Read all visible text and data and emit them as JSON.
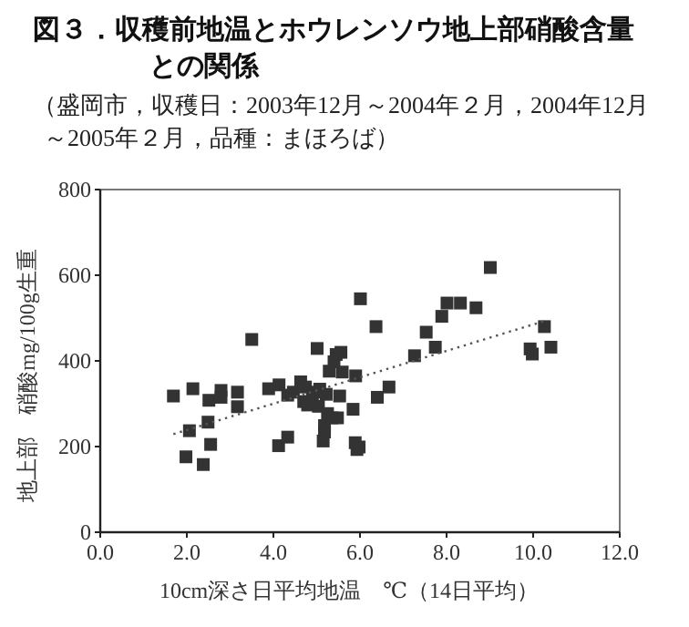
{
  "chart_data": {
    "type": "scatter",
    "title": "図３．収穫前地温とホウレンソウ地上部硝酸含量との関係",
    "subtitle": "（盛岡市，収穫日：2003年12月～2004年２月，2004年12月～2005年２月，品種：まほろば）",
    "xlabel": "10cm深さ日平均地温　℃（14日平均）",
    "ylabel": "地上部　硝酸mg/100g生重",
    "xlim": [
      0,
      12
    ],
    "ylim": [
      0,
      800
    ],
    "xticks": [
      {
        "value": 0,
        "label": "0.0"
      },
      {
        "value": 2,
        "label": "2.0"
      },
      {
        "value": 4,
        "label": "4.0"
      },
      {
        "value": 6,
        "label": "6.0"
      },
      {
        "value": 8,
        "label": "8.0"
      },
      {
        "value": 10,
        "label": "10.0"
      },
      {
        "value": 12,
        "label": "12.0"
      }
    ],
    "yticks": [
      0,
      200,
      400,
      600,
      800
    ],
    "series": [
      {
        "color": "#333333",
        "marker": "square",
        "x": [
          1.69,
          2.14,
          2.06,
          1.98,
          2.38,
          2.51,
          2.49,
          2.55,
          2.79,
          2.79,
          3.17,
          3.17,
          3.5,
          3.89,
          4.13,
          4.12,
          4.33,
          4.33,
          4.46,
          4.63,
          4.74,
          4.7,
          4.79,
          4.9,
          4.96,
          5.01,
          5.04,
          5.07,
          5.15,
          5.18,
          5.18,
          5.22,
          5.25,
          5.29,
          5.35,
          5.4,
          5.45,
          5.48,
          5.56,
          5.59,
          5.53,
          5.84,
          5.9,
          5.89,
          5.93,
          5.98,
          6.01,
          6.37,
          6.4,
          6.67,
          7.26,
          7.53,
          7.74,
          7.89,
          8.01,
          8.32,
          8.68,
          9.01,
          9.93,
          9.98,
          10.26,
          10.41
        ],
        "values": [
          318,
          335,
          237,
          176,
          158,
          308,
          257,
          205,
          331,
          315,
          327,
          293,
          450,
          335,
          344,
          202,
          222,
          320,
          327,
          351,
          339,
          305,
          297,
          314,
          327,
          429,
          294,
          334,
          213,
          234,
          249,
          322,
          277,
          376,
          267,
          398,
          415,
          267,
          420,
          374,
          318,
          287,
          365,
          209,
          193,
          199,
          545,
          480,
          315,
          339,
          412,
          467,
          432,
          504,
          535,
          535,
          524,
          618,
          428,
          416,
          480,
          432
        ]
      },
      {
        "type": "line",
        "color": "#555555",
        "marker": "none",
        "line_style": "dotted",
        "x": [
          1.69,
          10.26
        ],
        "values": [
          229,
          493
        ]
      }
    ]
  }
}
